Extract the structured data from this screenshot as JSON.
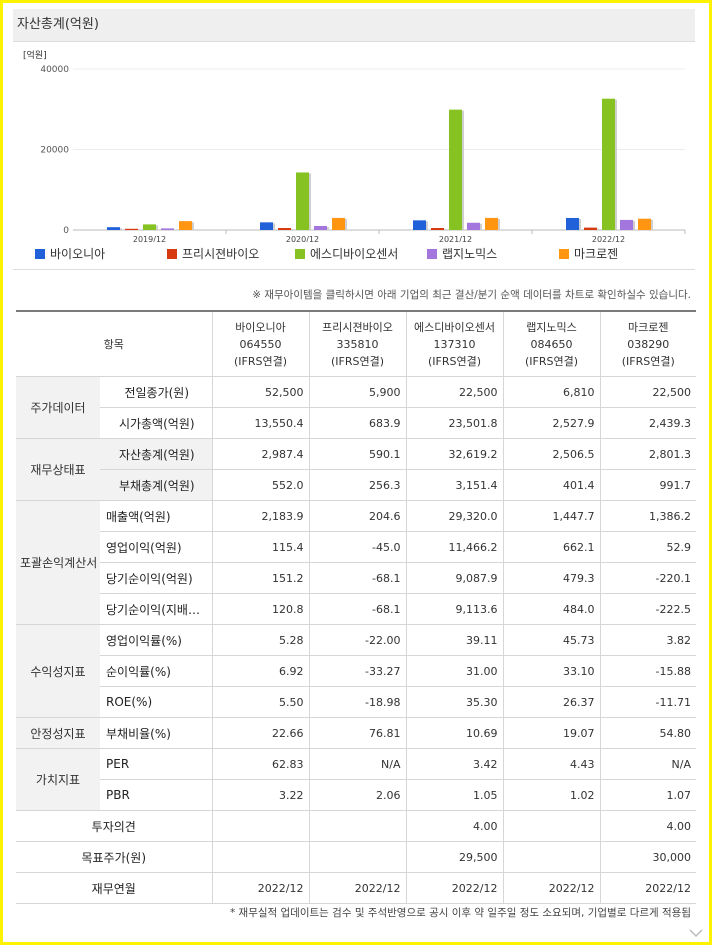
{
  "chart": {
    "title": "자산총계(억원)",
    "unit_label": "[억원]"
  },
  "chart_data": {
    "type": "bar",
    "title": "자산총계(억원)",
    "ylabel": "[억원]",
    "ylim": [
      0,
      40000
    ],
    "yticks": [
      "40000",
      "20000",
      "0"
    ],
    "ytick_values": [
      40000,
      20000,
      0
    ],
    "categories": [
      "2019/12",
      "2020/12",
      "2021/12",
      "2022/12"
    ],
    "series": [
      {
        "name": "바이오니아",
        "color": "#2060d8",
        "values": [
          700,
          1900,
          2400,
          2987.4
        ]
      },
      {
        "name": "프리시젼바이오",
        "color": "#d83a10",
        "values": [
          300,
          500,
          500,
          590.1
        ]
      },
      {
        "name": "에스디바이오센서",
        "color": "#86c322",
        "values": [
          1400,
          14300,
          29900,
          32619.2
        ]
      },
      {
        "name": "랩지노믹스",
        "color": "#a276dd",
        "values": [
          400,
          1000,
          1800,
          2506.5
        ]
      },
      {
        "name": "마크로젠",
        "color": "#ff9510",
        "values": [
          2200,
          3000,
          3000,
          2801.3
        ]
      }
    ]
  },
  "note": "※ 재무아이템을 클릭하시면 아래 기업의 최근 결산/분기 순액 데이터를 차트로 확인하실수 있습니다.",
  "table": {
    "header_item": "항목",
    "companies": [
      {
        "name": "바이오니아",
        "code": "064550",
        "basis": "(IFRS연결)"
      },
      {
        "name": "프리시젼바이오",
        "code": "335810",
        "basis": "(IFRS연결)"
      },
      {
        "name": "에스디바이오센서",
        "code": "137310",
        "basis": "(IFRS연결)"
      },
      {
        "name": "랩지노믹스",
        "code": "084650",
        "basis": "(IFRS연결)"
      },
      {
        "name": "마크로젠",
        "code": "038290",
        "basis": "(IFRS연결)"
      }
    ],
    "groups": [
      {
        "category": "주가데이터",
        "rows": [
          {
            "label": "전일종가(원)",
            "values": [
              "52,500",
              "5,900",
              "22,500",
              "6,810",
              "22,500"
            ]
          },
          {
            "label": "시가총액(억원)",
            "values": [
              "13,550.4",
              "683.9",
              "23,501.8",
              "2,527.9",
              "2,439.3"
            ]
          }
        ]
      },
      {
        "category": "재무상태표",
        "rows": [
          {
            "label": "자산총계(억원)",
            "values": [
              "2,987.4",
              "590.1",
              "32,619.2",
              "2,506.5",
              "2,801.3"
            ]
          },
          {
            "label": "부채총계(억원)",
            "values": [
              "552.0",
              "256.3",
              "3,151.4",
              "401.4",
              "991.7"
            ]
          }
        ]
      },
      {
        "category": "포괄손익계산서",
        "rows": [
          {
            "label": "매출액(억원)",
            "values": [
              "2,183.9",
              "204.6",
              "29,320.0",
              "1,447.7",
              "1,386.2"
            ]
          },
          {
            "label": "영업이익(억원)",
            "values": [
              "115.4",
              "-45.0",
              "11,466.2",
              "662.1",
              "52.9"
            ]
          },
          {
            "label": "당기순이익(억원)",
            "values": [
              "151.2",
              "-68.1",
              "9,087.9",
              "479.3",
              "-220.1"
            ]
          },
          {
            "label": "당기순이익(지배…",
            "values": [
              "120.8",
              "-68.1",
              "9,113.6",
              "484.0",
              "-222.5"
            ]
          }
        ]
      },
      {
        "category": "수익성지표",
        "rows": [
          {
            "label": "영업이익률(%)",
            "values": [
              "5.28",
              "-22.00",
              "39.11",
              "45.73",
              "3.82"
            ]
          },
          {
            "label": "순이익률(%)",
            "values": [
              "6.92",
              "-33.27",
              "31.00",
              "33.10",
              "-15.88"
            ]
          },
          {
            "label": "ROE(%)",
            "values": [
              "5.50",
              "-18.98",
              "35.30",
              "26.37",
              "-11.71"
            ]
          }
        ]
      },
      {
        "category": "안정성지표",
        "rows": [
          {
            "label": "부채비율(%)",
            "values": [
              "22.66",
              "76.81",
              "10.69",
              "19.07",
              "54.80"
            ]
          }
        ]
      },
      {
        "category": "가치지표",
        "rows": [
          {
            "label": "PER",
            "values": [
              "62.83",
              "N/A",
              "3.42",
              "4.43",
              "N/A"
            ]
          },
          {
            "label": "PBR",
            "values": [
              "3.22",
              "2.06",
              "1.05",
              "1.02",
              "1.07"
            ]
          }
        ]
      }
    ],
    "extra_rows": [
      {
        "label": "투자의견",
        "values": [
          "",
          "",
          "4.00",
          "",
          "4.00"
        ]
      },
      {
        "label": "목표주가(원)",
        "values": [
          "",
          "",
          "29,500",
          "",
          "30,000"
        ]
      },
      {
        "label": "재무연월",
        "values": [
          "2022/12",
          "2022/12",
          "2022/12",
          "2022/12",
          "2022/12"
        ]
      }
    ]
  },
  "footnote": "* 재무실적 업데이트는 검수 및 주석반영으로 공시 이후 약 일주일 정도 소요되며, 기업별로 다르게 적용됩"
}
